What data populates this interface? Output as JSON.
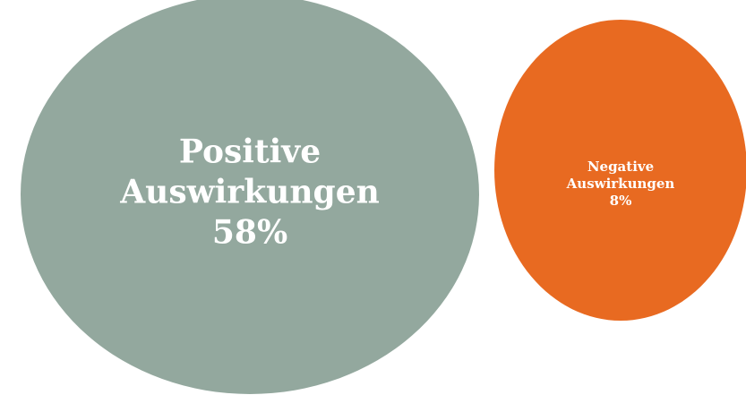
{
  "chart_data": {
    "type": "bubble",
    "categories": [
      "Positive Auswirkungen",
      "Negative Auswirkungen"
    ],
    "values": [
      58,
      8
    ],
    "value_labels": [
      "58%",
      "8%"
    ],
    "colors": [
      "#93a89e",
      "#e86a21"
    ]
  }
}
